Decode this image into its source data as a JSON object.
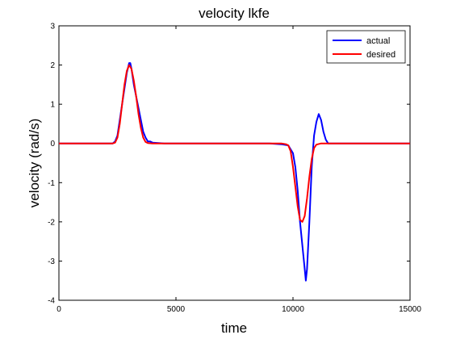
{
  "chart_data": {
    "type": "line",
    "title": "velocity lkfe",
    "xlabel": "time",
    "ylabel": "velocity (rad/s)",
    "xlim": [
      0,
      15000
    ],
    "ylim": [
      -4,
      3
    ],
    "xticks": [
      0,
      5000,
      10000,
      15000
    ],
    "yticks": [
      -4,
      -3,
      -2,
      -1,
      0,
      1,
      2,
      3
    ],
    "grid": false,
    "legend_position": "top-right",
    "series": [
      {
        "name": "actual",
        "color": "#0000ff",
        "x": [
          0,
          2300,
          2400,
          2500,
          2600,
          2700,
          2800,
          2900,
          3000,
          3050,
          3100,
          3200,
          3300,
          3400,
          3500,
          3600,
          3700,
          3800,
          3900,
          4000,
          4500,
          5000,
          6000,
          7000,
          8000,
          9000,
          9500,
          9800,
          10000,
          10100,
          10200,
          10300,
          10400,
          10500,
          10550,
          10600,
          10700,
          10800,
          10900,
          11000,
          11100,
          11200,
          11300,
          11400,
          11500,
          11700,
          12000,
          13000,
          14000,
          15000
        ],
        "y": [
          0,
          0,
          0.05,
          0.2,
          0.6,
          1.0,
          1.4,
          1.8,
          2.05,
          2.05,
          1.9,
          1.5,
          1.2,
          0.9,
          0.6,
          0.3,
          0.15,
          0.05,
          0.05,
          0.02,
          0.0,
          0.0,
          0.0,
          0.0,
          0.0,
          0.0,
          -0.02,
          -0.05,
          -0.25,
          -0.6,
          -1.2,
          -2.0,
          -2.6,
          -3.2,
          -3.5,
          -3.2,
          -2.0,
          -0.6,
          0.2,
          0.55,
          0.75,
          0.6,
          0.3,
          0.1,
          0.0,
          0.0,
          0.0,
          0.0,
          0.0,
          0.0
        ]
      },
      {
        "name": "desired",
        "color": "#ff0000",
        "x": [
          0,
          2300,
          2400,
          2500,
          2600,
          2700,
          2800,
          2900,
          3000,
          3100,
          3200,
          3300,
          3400,
          3500,
          3600,
          3700,
          3800,
          4000,
          5000,
          9000,
          9500,
          9700,
          9800,
          9900,
          10000,
          10100,
          10200,
          10300,
          10400,
          10500,
          10600,
          10700,
          10800,
          10900,
          11000,
          11200,
          12000,
          15000
        ],
        "y": [
          0,
          0,
          0.02,
          0.15,
          0.5,
          1.0,
          1.5,
          1.85,
          2.0,
          1.9,
          1.6,
          1.2,
          0.75,
          0.4,
          0.15,
          0.04,
          0.01,
          0,
          0,
          0,
          0,
          -0.02,
          -0.05,
          -0.2,
          -0.6,
          -1.1,
          -1.6,
          -1.95,
          -2.0,
          -1.85,
          -1.4,
          -0.85,
          -0.4,
          -0.12,
          -0.03,
          0,
          0,
          0
        ]
      }
    ]
  }
}
